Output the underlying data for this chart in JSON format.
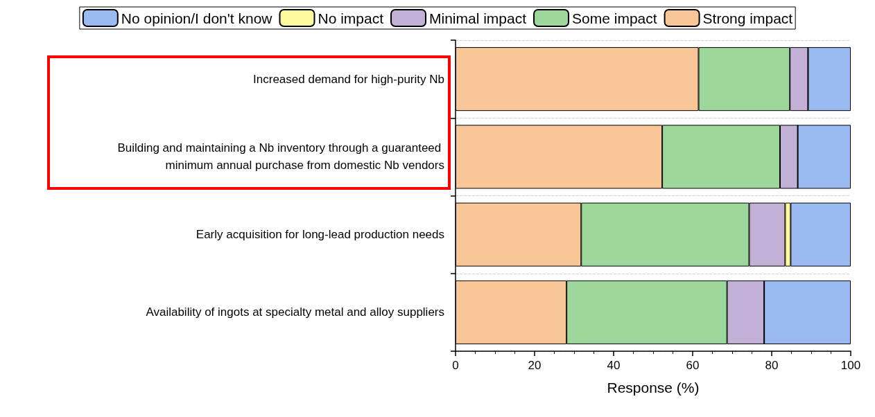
{
  "chart_data": {
    "type": "bar",
    "orientation": "horizontal",
    "stacked": true,
    "xlabel": "Response (%)",
    "categories": [
      "Increased demand for high-purity Nb",
      "Building and maintaining a Nb inventory through a guaranteed minimum annual purchase from domestic Nb vendors",
      "Early acquisition for long-lead production needs",
      "Availability of ingots at specialty metal and alloy suppliers"
    ],
    "series": [
      {
        "name": "Strong impact",
        "color": "#f9c797",
        "values": [
          61.5,
          52.3,
          31.8,
          28.1
        ]
      },
      {
        "name": "Some impact",
        "color": "#9ed79c",
        "values": [
          23.1,
          29.8,
          42.5,
          40.6
        ]
      },
      {
        "name": "Minimal impact",
        "color": "#c2b0d6",
        "values": [
          4.6,
          4.5,
          9.1,
          9.4
        ]
      },
      {
        "name": "No impact",
        "color": "#fdfb9c",
        "values": [
          0,
          0,
          1.4,
          0
        ]
      },
      {
        "name": "No opinion/I don't know",
        "color": "#9bbaf1",
        "values": [
          10.8,
          13.4,
          15.2,
          21.9
        ]
      }
    ],
    "xlim": [
      0,
      100
    ],
    "xticks": [
      0,
      20,
      40,
      60,
      80,
      100
    ],
    "grid": "y",
    "legend": "top"
  }
}
